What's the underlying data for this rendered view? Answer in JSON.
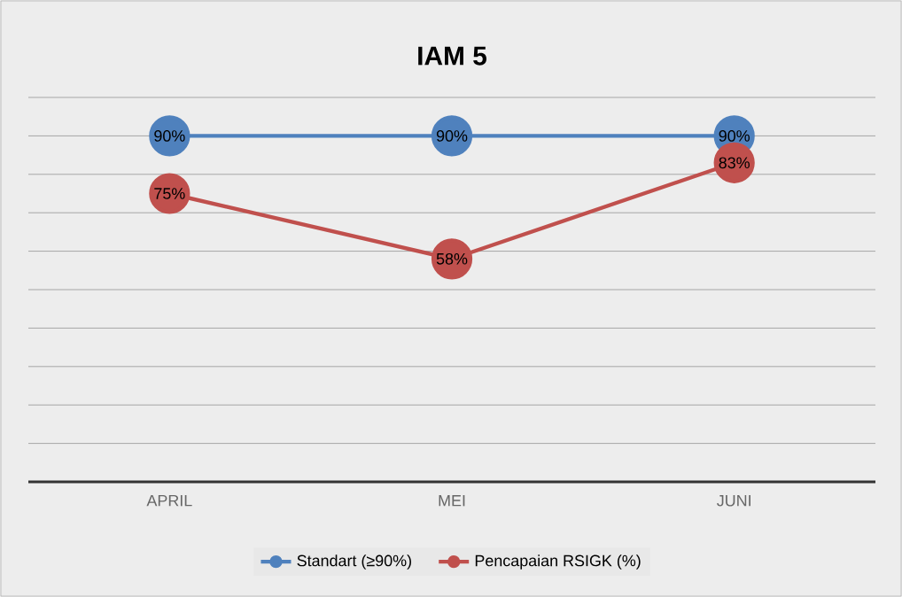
{
  "chart_data": {
    "type": "line",
    "title": "IAM 5",
    "categories": [
      "APRIL",
      "MEI",
      "JUNI"
    ],
    "series": [
      {
        "name": "Standart (≥90%)",
        "color": "#4f81bd",
        "values": [
          90,
          90,
          90
        ],
        "value_labels": [
          "90%",
          "90%",
          "90%"
        ]
      },
      {
        "name": "Pencapaian RSIGK (%)",
        "color": "#c0504d",
        "values": [
          75,
          58,
          83
        ],
        "value_labels": [
          "75%",
          "58%",
          "83%"
        ]
      }
    ],
    "ylim": [
      0,
      100
    ],
    "yticks": [
      {
        "value": 0,
        "label": null
      },
      {
        "value": 10,
        "label": null
      },
      {
        "value": 20,
        "label": null
      },
      {
        "value": 30,
        "label": null
      },
      {
        "value": 40,
        "label": null
      },
      {
        "value": 50,
        "label": null
      },
      {
        "value": 60,
        "label": null
      },
      {
        "value": 70,
        "label": null
      },
      {
        "value": 80,
        "label": null
      },
      {
        "value": 90,
        "label": null
      },
      {
        "value": 100,
        "label": null
      }
    ],
    "tick_labels": "x",
    "grid": "y",
    "legend": "bottom",
    "marker": "circle",
    "line_style": "solid"
  }
}
